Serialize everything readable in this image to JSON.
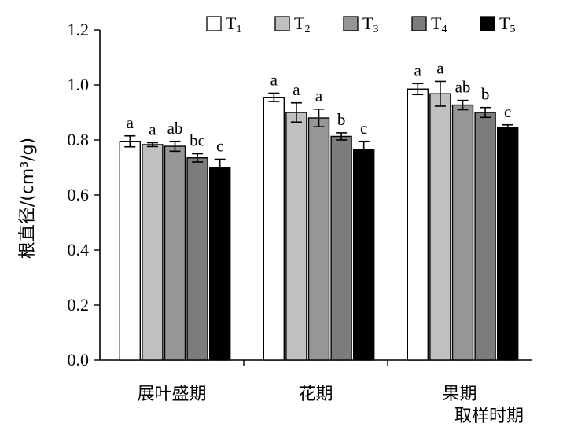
{
  "chart_data": {
    "type": "bar",
    "ylabel": "根直径/(cm³/g)",
    "xlabel": "取样时期",
    "ylim": [
      0,
      1.2
    ],
    "yticks": [
      0.0,
      0.2,
      0.4,
      0.6,
      0.8,
      1.0,
      1.2
    ],
    "ytick_labels": [
      "0.0",
      "0.2",
      "0.4",
      "0.6",
      "0.8",
      "1.0",
      "1.2"
    ],
    "categories": [
      "展叶盛期",
      "花期",
      "果期"
    ],
    "legend_position": "top-right",
    "series": [
      {
        "name": "T1",
        "subscript": "1",
        "color": "#ffffff",
        "values": [
          0.795,
          0.955,
          0.985
        ],
        "errors": [
          0.02,
          0.015,
          0.02
        ],
        "letters": [
          "a",
          "a",
          "a"
        ]
      },
      {
        "name": "T2",
        "subscript": "2",
        "color": "#c0c0c0",
        "values": [
          0.783,
          0.9,
          0.968
        ],
        "errors": [
          0.007,
          0.035,
          0.045
        ],
        "letters": [
          "a",
          "a",
          "a"
        ]
      },
      {
        "name": "T3",
        "subscript": "3",
        "color": "#969696",
        "values": [
          0.777,
          0.88,
          0.927
        ],
        "errors": [
          0.018,
          0.032,
          0.017
        ],
        "letters": [
          "ab",
          "a",
          "ab"
        ]
      },
      {
        "name": "T4",
        "subscript": "4",
        "color": "#7c7c7c",
        "values": [
          0.735,
          0.813,
          0.9
        ],
        "errors": [
          0.015,
          0.013,
          0.018
        ],
        "letters": [
          "bc",
          "b",
          "b"
        ]
      },
      {
        "name": "T5",
        "subscript": "5",
        "color": "#000000",
        "values": [
          0.7,
          0.765,
          0.845
        ],
        "errors": [
          0.03,
          0.03,
          0.01
        ],
        "letters": [
          "c",
          "c",
          "c"
        ]
      }
    ]
  }
}
